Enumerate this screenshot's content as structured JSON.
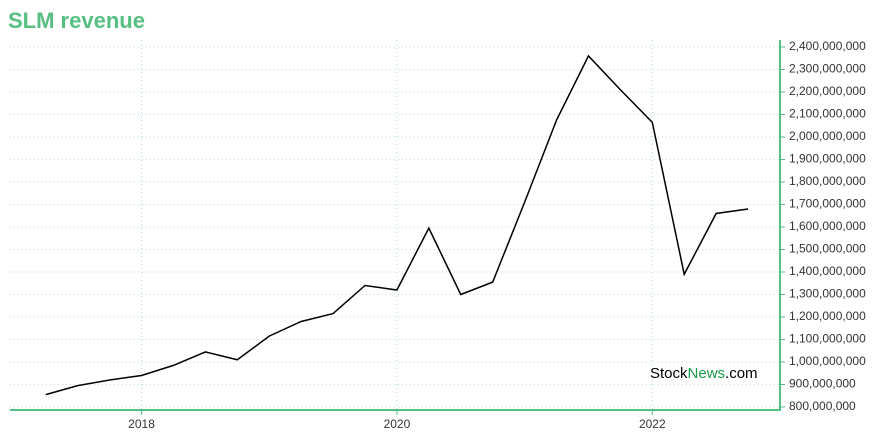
{
  "chart_data": {
    "type": "line",
    "title": "SLM revenue",
    "watermark": [
      "Stock",
      "News",
      ".com"
    ],
    "x": [
      2017.25,
      2017.5,
      2017.75,
      2018.0,
      2018.25,
      2018.5,
      2018.75,
      2019.0,
      2019.25,
      2019.5,
      2019.75,
      2020.0,
      2020.25,
      2020.5,
      2020.75,
      2021.0,
      2021.25,
      2021.5,
      2021.75,
      2022.0,
      2022.25,
      2022.5,
      2022.75
    ],
    "series": [
      {
        "name": "SLM revenue",
        "color": "#000000",
        "values": [
          855000000,
          895000000,
          920000000,
          940000000,
          985000000,
          1045000000,
          1010000000,
          1115000000,
          1180000000,
          1215000000,
          1340000000,
          1320000000,
          1595000000,
          1300000000,
          1355000000,
          1710000000,
          2075000000,
          2360000000,
          2210000000,
          2065000000,
          1390000000,
          1660000000,
          1680000000
        ]
      }
    ],
    "xlim": [
      2016.97,
      2023.0
    ],
    "xticks": [
      2018,
      2020,
      2022
    ],
    "ylim": [
      786700000,
      2431000000
    ],
    "yticks": [
      {
        "value": 800000000,
        "label": "800,000,000"
      },
      {
        "value": 900000000,
        "label": "900,000,000"
      },
      {
        "value": 1000000000,
        "label": "1,000,000,000"
      },
      {
        "value": 1100000000,
        "label": "1,100,000,000"
      },
      {
        "value": 1200000000,
        "label": "1,200,000,000"
      },
      {
        "value": 1300000000,
        "label": "1,300,000,000"
      },
      {
        "value": 1400000000,
        "label": "1,400,000,000"
      },
      {
        "value": 1500000000,
        "label": "1,500,000,000"
      },
      {
        "value": 1600000000,
        "label": "1,600,000,000"
      },
      {
        "value": 1700000000,
        "label": "1,700,000,000"
      },
      {
        "value": 1800000000,
        "label": "1,800,000,000"
      },
      {
        "value": 1900000000,
        "label": "1,900,000,000"
      },
      {
        "value": 2000000000,
        "label": "2,000,000,000"
      },
      {
        "value": 2100000000,
        "label": "2,100,000,000"
      },
      {
        "value": 2200000000,
        "label": "2,200,000,000"
      },
      {
        "value": 2300000000,
        "label": "2,300,000,000"
      },
      {
        "value": 2400000000,
        "label": "2,400,000,000"
      }
    ],
    "grid": true
  }
}
